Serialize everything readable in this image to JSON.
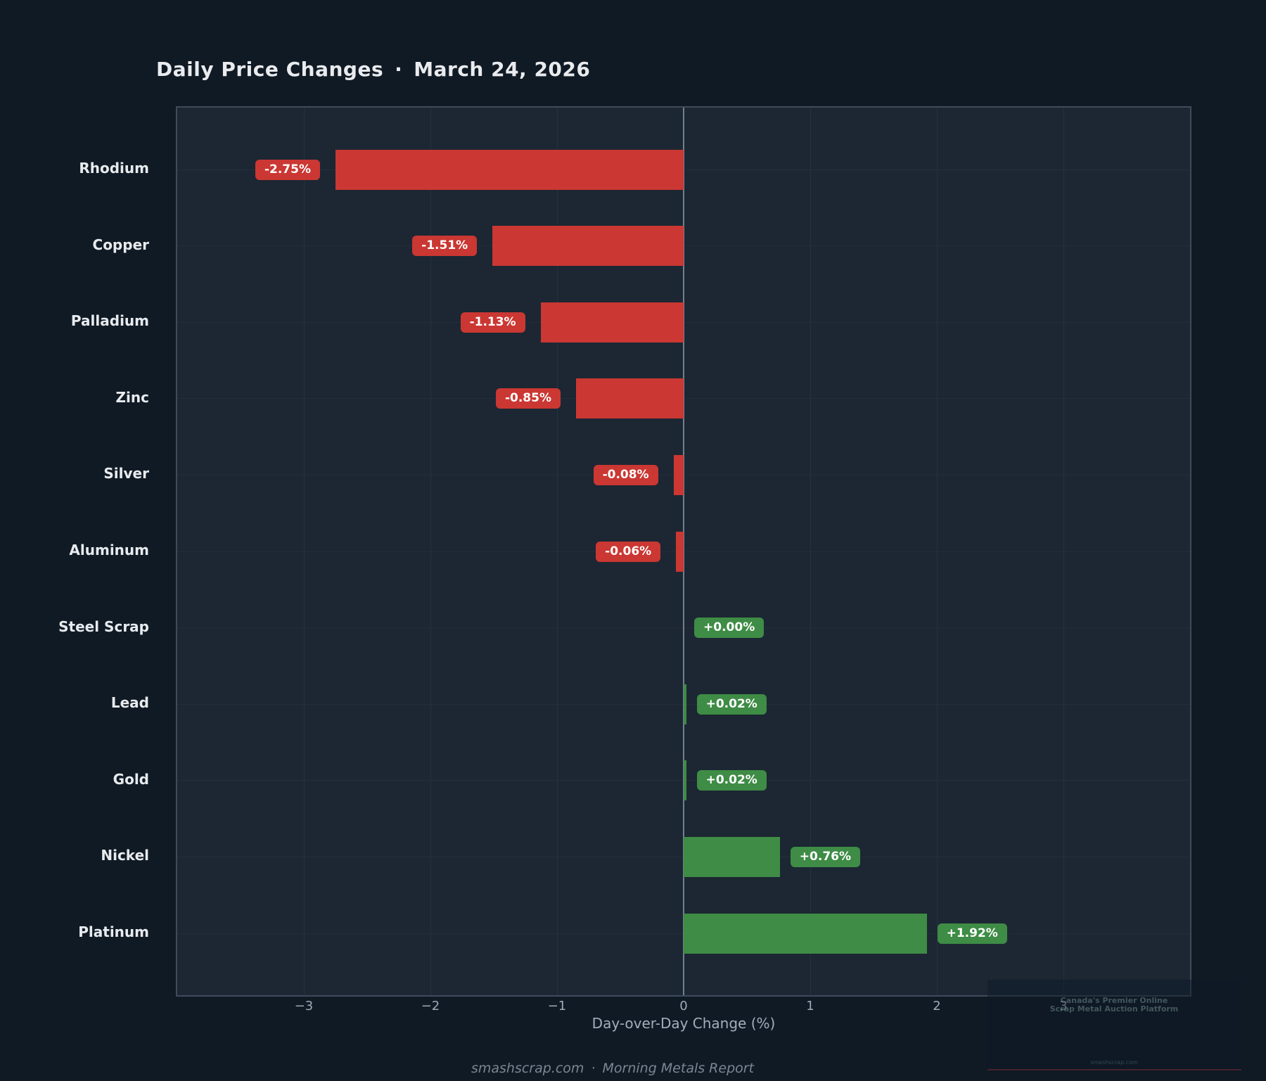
{
  "title": {
    "text": "Daily Price Changes",
    "separator": "·",
    "date": "March 24, 2026"
  },
  "chart_data": {
    "type": "bar",
    "orientation": "horizontal",
    "title": "Daily Price Changes · March 24, 2026",
    "categories": [
      "Rhodium",
      "Copper",
      "Palladium",
      "Zinc",
      "Silver",
      "Aluminum",
      "Steel Scrap",
      "Lead",
      "Gold",
      "Nickel",
      "Platinum"
    ],
    "values": [
      -2.75,
      -1.51,
      -1.13,
      -0.85,
      -0.08,
      -0.06,
      0.0,
      0.02,
      0.02,
      0.76,
      1.92
    ],
    "bar_labels": [
      "-2.75%",
      "-1.51%",
      "-1.13%",
      "-0.85%",
      "-0.08%",
      "-0.06%",
      "+0.00%",
      "+0.02%",
      "+0.02%",
      "+0.76%",
      "+1.92%"
    ],
    "xlabel": "Day-over-Day Change (%)",
    "xlim": [
      -4,
      4
    ],
    "xticks": [
      -3,
      -2,
      -1,
      0,
      1,
      2,
      3
    ],
    "xtick_labels": [
      "−3",
      "−2",
      "−1",
      "0",
      "1",
      "2",
      "3"
    ],
    "grid": true,
    "legend": false,
    "colors": {
      "negative": "#cb3732",
      "positive": "#3e8c45",
      "zero_line": "#72808e",
      "plot_background": "#1c2733",
      "page_background": "#101a24"
    }
  },
  "footer": {
    "site": "smashscrap.com",
    "separator": "·",
    "report": "Morning Metals Report"
  },
  "watermark": {
    "line1": "Canada's Premier Online",
    "line2": "Scrap Metal Auction Platform",
    "line3": "smashscrap.com"
  }
}
